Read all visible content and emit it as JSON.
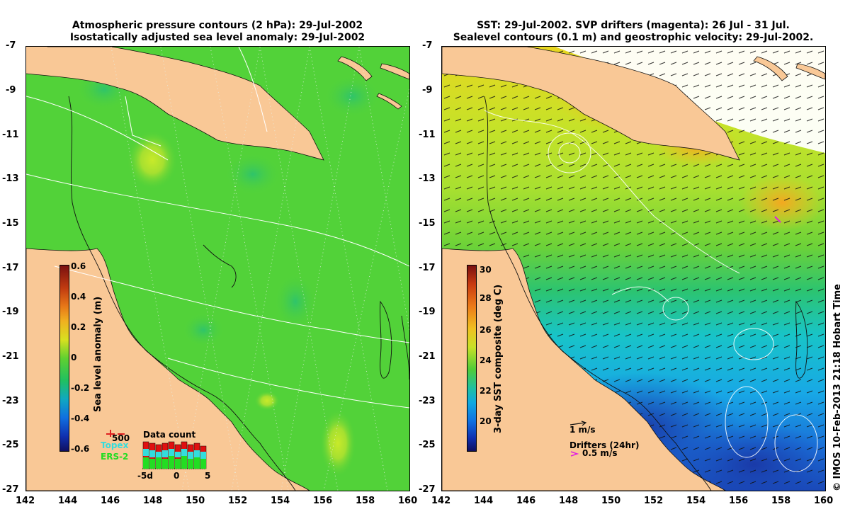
{
  "left_panel": {
    "title_line1": "Atmospheric pressure contours (2 hPa): 29-Jul-2002",
    "title_line2": "Isostatically adjusted sea level anomaly: 29-Jul-2002",
    "colorbar_label": "Sea level anomaly (m)",
    "colorbar_ticks": [
      "0.6",
      "0.4",
      "0.2",
      "0",
      "-0.2",
      "-0.4",
      "-0.6"
    ],
    "legend": {
      "scale_value": "500",
      "sat1": "Topex",
      "sat2": "ERS-2",
      "count_title": "Data count",
      "count_ticks": [
        "-5d",
        "0",
        "5"
      ]
    }
  },
  "right_panel": {
    "title_line1": "SST: 29-Jul-2002. SVP drifters (magenta): 26 Jul - 31 Jul.",
    "title_line2": "Sealevel contours (0.1 m) and geostrophic velocity: 29-Jul-2002.",
    "colorbar_label": "3-day SST composite (deg C)",
    "colorbar_ticks": [
      "30",
      "28",
      "26",
      "24",
      "22",
      "20"
    ],
    "velocity_scale": "1 m/s",
    "drifter_title": "Drifters (24hr)",
    "drifter_scale": "0.5 m/s"
  },
  "axes": {
    "lat_ticks": [
      "-7",
      "-9",
      "-11",
      "-13",
      "-15",
      "-17",
      "-19",
      "-21",
      "-23",
      "-25",
      "-27"
    ],
    "lon_ticks": [
      "142",
      "144",
      "146",
      "148",
      "150",
      "152",
      "154",
      "156",
      "158",
      "160"
    ]
  },
  "copyright": "© IMOS 10-Feb-2013 21:18 Hobart Time",
  "colors": {
    "land": "#f9c896",
    "sla_sea": "#52d239",
    "contour": "#111111",
    "white_contour": "#ffffff",
    "satellite_topex": "#33dddd",
    "satellite_ers2": "#22dd22",
    "magenta": "#e020e0"
  }
}
